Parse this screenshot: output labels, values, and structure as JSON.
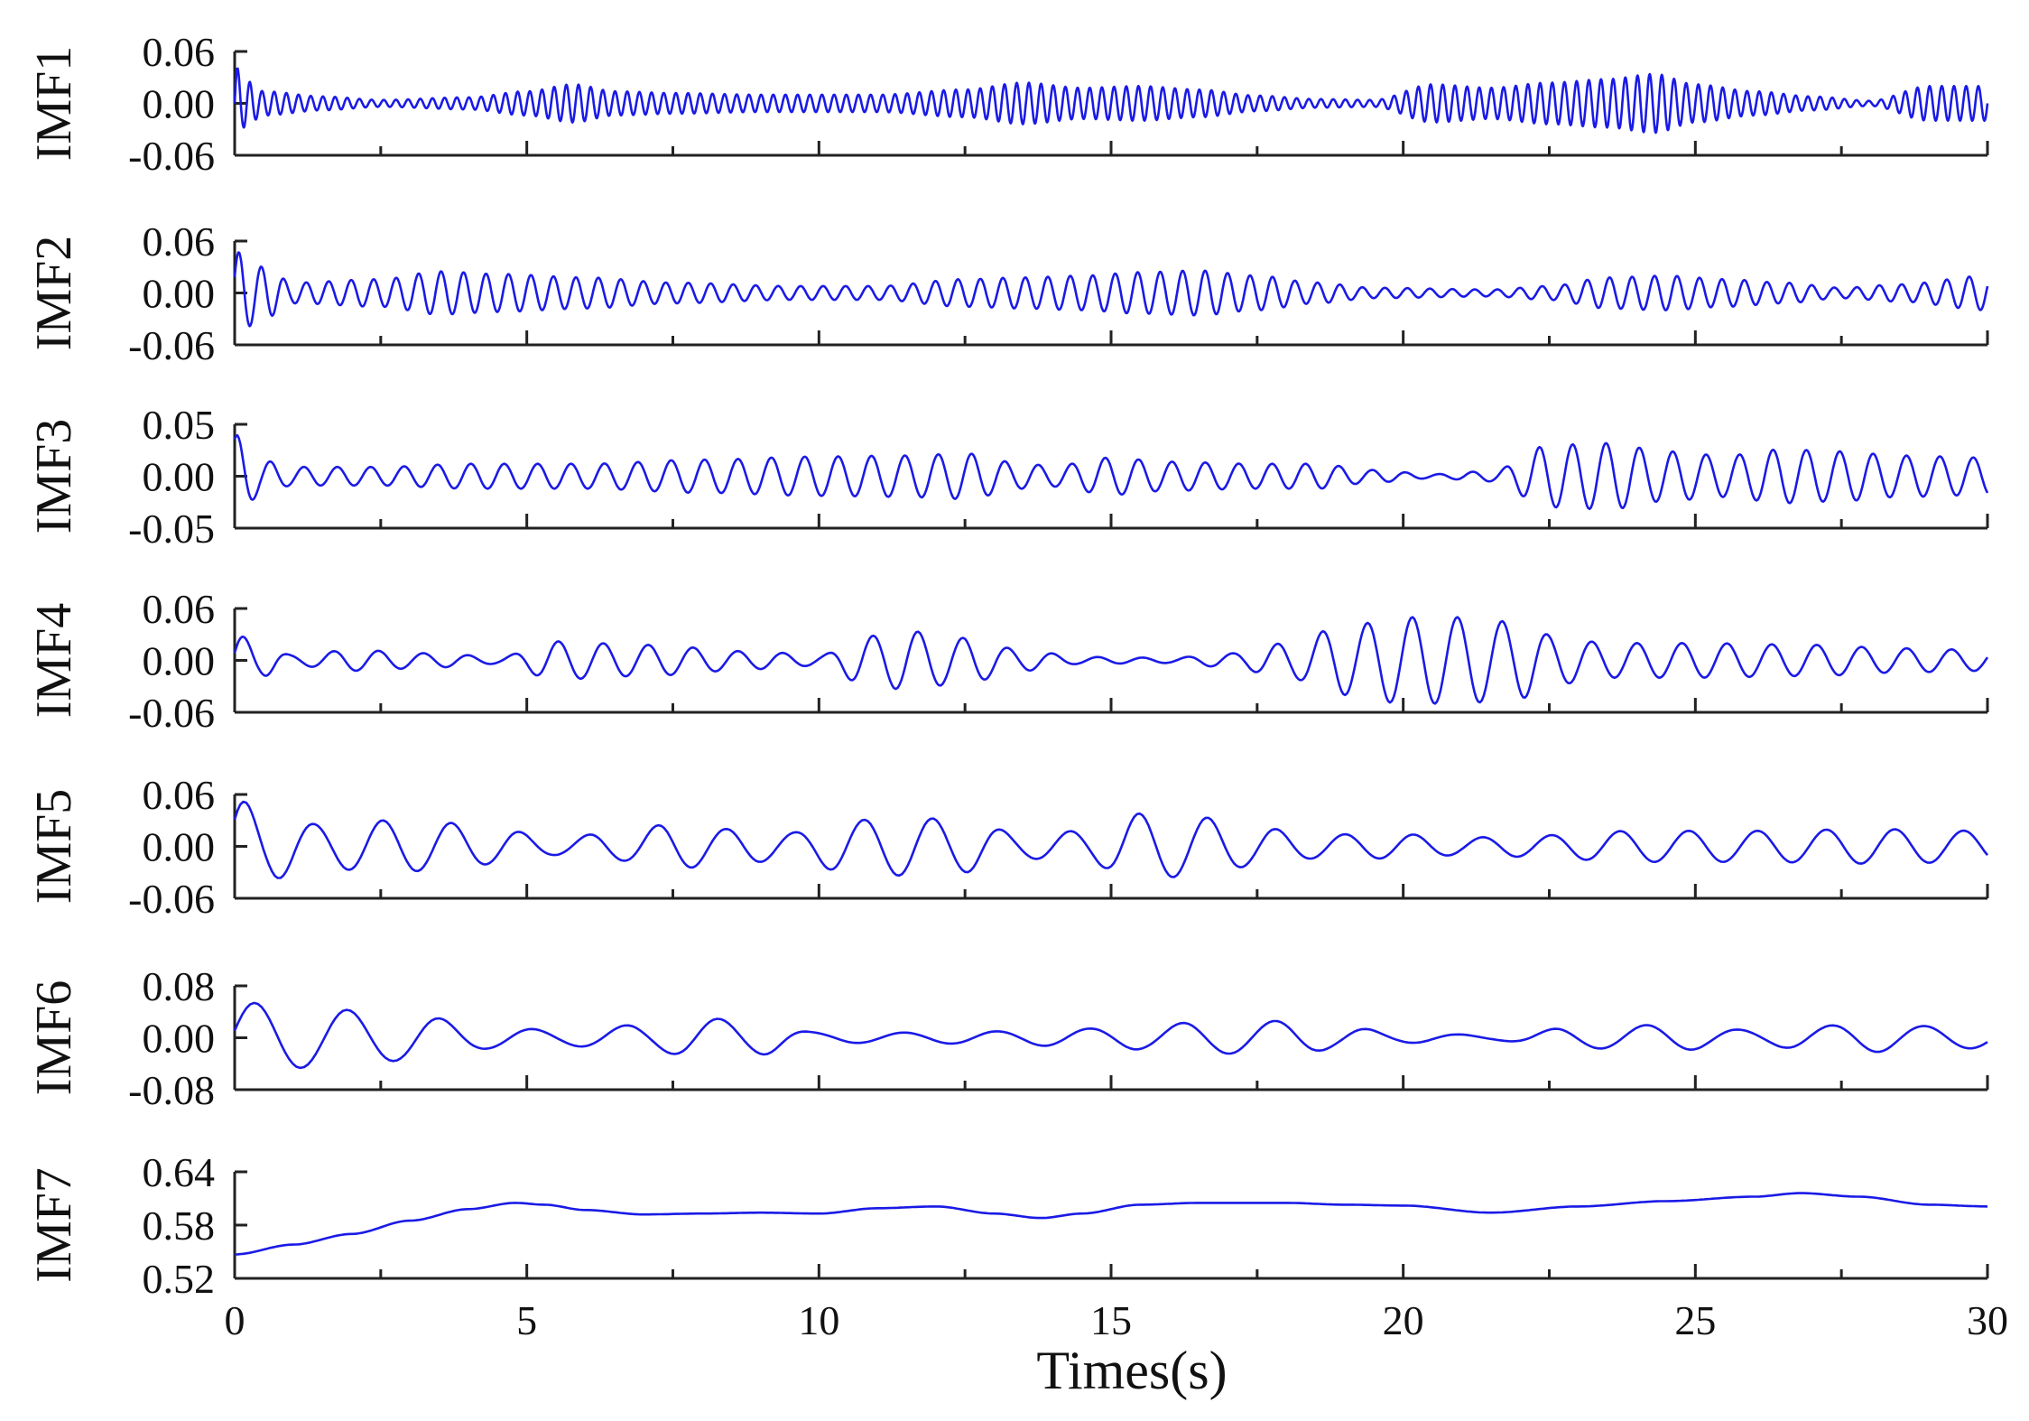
{
  "chart_data": {
    "type": "line",
    "xlabel": "Times(s)",
    "xlim": [
      0,
      30
    ],
    "xticks": [
      0,
      5,
      10,
      15,
      20,
      25,
      30
    ],
    "line_color": "#1a1ae6",
    "panels": [
      {
        "name": "IMF1",
        "ylim": [
          -0.06,
          0.06
        ],
        "yticks": [
          "0.06",
          "0.00",
          "-0.06"
        ],
        "osc": {
          "freq": 4.8,
          "phase": 0.0
        },
        "envelope": [
          [
            0,
            0.045
          ],
          [
            0.15,
            0.028
          ],
          [
            0.5,
            0.014
          ],
          [
            1.5,
            0.008
          ],
          [
            2.5,
            0.004
          ],
          [
            4,
            0.007
          ],
          [
            5,
            0.014
          ],
          [
            5.8,
            0.022
          ],
          [
            6.5,
            0.014
          ],
          [
            7.5,
            0.012
          ],
          [
            9,
            0.01
          ],
          [
            11,
            0.01
          ],
          [
            12.5,
            0.016
          ],
          [
            13.5,
            0.024
          ],
          [
            14.5,
            0.018
          ],
          [
            15.5,
            0.02
          ],
          [
            16.5,
            0.016
          ],
          [
            17.5,
            0.009
          ],
          [
            18.5,
            0.005
          ],
          [
            19.5,
            0.004
          ],
          [
            20.5,
            0.022
          ],
          [
            21.5,
            0.018
          ],
          [
            22.5,
            0.024
          ],
          [
            23.5,
            0.028
          ],
          [
            24.3,
            0.034
          ],
          [
            25,
            0.022
          ],
          [
            26,
            0.014
          ],
          [
            27,
            0.008
          ],
          [
            28,
            0.003
          ],
          [
            29,
            0.02
          ],
          [
            30,
            0.02
          ]
        ]
      },
      {
        "name": "IMF2",
        "ylim": [
          -0.06,
          0.06
        ],
        "yticks": [
          "0.06",
          "0.00",
          "-0.06"
        ],
        "osc": {
          "freq": 2.6,
          "phase": 0.4
        },
        "envelope": [
          [
            0,
            0.048
          ],
          [
            0.5,
            0.03
          ],
          [
            1,
            0.012
          ],
          [
            2.5,
            0.016
          ],
          [
            3.5,
            0.025
          ],
          [
            4.5,
            0.022
          ],
          [
            6,
            0.018
          ],
          [
            7.5,
            0.012
          ],
          [
            9.5,
            0.008
          ],
          [
            11,
            0.008
          ],
          [
            12.5,
            0.016
          ],
          [
            13.5,
            0.018
          ],
          [
            14.5,
            0.02
          ],
          [
            15.5,
            0.024
          ],
          [
            16.5,
            0.026
          ],
          [
            17.5,
            0.02
          ],
          [
            18.5,
            0.012
          ],
          [
            19.5,
            0.006
          ],
          [
            21.5,
            0.004
          ],
          [
            22.5,
            0.008
          ],
          [
            23.5,
            0.018
          ],
          [
            24.5,
            0.02
          ],
          [
            25.5,
            0.016
          ],
          [
            26.5,
            0.012
          ],
          [
            27.5,
            0.006
          ],
          [
            28.5,
            0.01
          ],
          [
            30,
            0.02
          ]
        ]
      },
      {
        "name": "IMF3",
        "ylim": [
          -0.05,
          0.05
        ],
        "yticks": [
          "0.05",
          "0.00",
          "-0.05"
        ],
        "osc": {
          "freq": 1.75,
          "phase": 1.1
        },
        "envelope": [
          [
            0,
            0.04
          ],
          [
            0.5,
            0.015
          ],
          [
            1,
            0.009
          ],
          [
            2.5,
            0.009
          ],
          [
            4,
            0.012
          ],
          [
            6,
            0.012
          ],
          [
            8,
            0.016
          ],
          [
            10,
            0.019
          ],
          [
            11.5,
            0.02
          ],
          [
            12.5,
            0.022
          ],
          [
            13.5,
            0.012
          ],
          [
            14,
            0.01
          ],
          [
            15,
            0.018
          ],
          [
            16,
            0.014
          ],
          [
            17.5,
            0.012
          ],
          [
            18.5,
            0.012
          ],
          [
            19.5,
            0.006
          ],
          [
            20.5,
            0.002
          ],
          [
            21.5,
            0.005
          ],
          [
            22.5,
            0.03
          ],
          [
            23.5,
            0.032
          ],
          [
            24.5,
            0.024
          ],
          [
            25.5,
            0.02
          ],
          [
            26.5,
            0.026
          ],
          [
            27.5,
            0.024
          ],
          [
            28.5,
            0.02
          ],
          [
            30,
            0.018
          ]
        ]
      },
      {
        "name": "IMF4",
        "ylim": [
          -0.06,
          0.06
        ],
        "yticks": [
          "0.06",
          "0.00",
          "-0.06"
        ],
        "osc": {
          "freq": 1.3,
          "phase": 0.3
        },
        "envelope": [
          [
            0,
            0.03
          ],
          [
            0.5,
            0.018
          ],
          [
            1,
            0.006
          ],
          [
            2,
            0.012
          ],
          [
            3.5,
            0.008
          ],
          [
            4.5,
            0.004
          ],
          [
            5.5,
            0.022
          ],
          [
            7,
            0.018
          ],
          [
            9,
            0.01
          ],
          [
            10,
            0.006
          ],
          [
            10.8,
            0.028
          ],
          [
            11.5,
            0.034
          ],
          [
            12.5,
            0.026
          ],
          [
            13.5,
            0.012
          ],
          [
            14.5,
            0.004
          ],
          [
            16,
            0.003
          ],
          [
            17,
            0.008
          ],
          [
            18,
            0.02
          ],
          [
            19,
            0.04
          ],
          [
            20,
            0.05
          ],
          [
            21,
            0.05
          ],
          [
            22,
            0.044
          ],
          [
            22.6,
            0.028
          ],
          [
            23.5,
            0.02
          ],
          [
            25,
            0.02
          ],
          [
            27,
            0.018
          ],
          [
            28.5,
            0.014
          ],
          [
            30,
            0.012
          ]
        ]
      },
      {
        "name": "IMF5",
        "ylim": [
          -0.06,
          0.06
        ],
        "yticks": [
          "0.06",
          "0.00",
          "-0.06"
        ],
        "osc": {
          "freq": 0.85,
          "phase": 0.6
        },
        "envelope": [
          [
            0,
            0.055
          ],
          [
            0.6,
            0.038
          ],
          [
            1.5,
            0.025
          ],
          [
            2.5,
            0.03
          ],
          [
            3.5,
            0.028
          ],
          [
            4.5,
            0.02
          ],
          [
            5.5,
            0.01
          ],
          [
            6.5,
            0.016
          ],
          [
            7.5,
            0.026
          ],
          [
            8.5,
            0.02
          ],
          [
            9.5,
            0.016
          ],
          [
            10.5,
            0.03
          ],
          [
            11.5,
            0.034
          ],
          [
            12.5,
            0.03
          ],
          [
            13.5,
            0.014
          ],
          [
            14.5,
            0.018
          ],
          [
            15.5,
            0.038
          ],
          [
            16.5,
            0.034
          ],
          [
            17.5,
            0.022
          ],
          [
            18.5,
            0.014
          ],
          [
            20,
            0.014
          ],
          [
            21,
            0.01
          ],
          [
            22,
            0.012
          ],
          [
            24,
            0.018
          ],
          [
            26,
            0.018
          ],
          [
            28,
            0.02
          ],
          [
            30,
            0.018
          ]
        ]
      },
      {
        "name": "IMF6",
        "ylim": [
          -0.08,
          0.08
        ],
        "yticks": [
          "0.08",
          "0.00",
          "-0.08"
        ],
        "osc": {
          "freq": 0.63,
          "phase": 0.2
        },
        "envelope": [
          [
            0,
            0.055
          ],
          [
            1.5,
            0.045
          ],
          [
            3,
            0.035
          ],
          [
            4.5,
            0.016
          ],
          [
            5.5,
            0.012
          ],
          [
            7,
            0.02
          ],
          [
            8,
            0.03
          ],
          [
            9,
            0.026
          ],
          [
            10,
            0.008
          ],
          [
            11.5,
            0.008
          ],
          [
            13,
            0.01
          ],
          [
            14.5,
            0.014
          ],
          [
            15.5,
            0.018
          ],
          [
            16.5,
            0.024
          ],
          [
            18,
            0.026
          ],
          [
            19,
            0.016
          ],
          [
            20,
            0.008
          ],
          [
            21.5,
            0.004
          ],
          [
            23,
            0.016
          ],
          [
            24.5,
            0.02
          ],
          [
            26,
            0.012
          ],
          [
            27,
            0.018
          ],
          [
            28,
            0.022
          ],
          [
            29,
            0.018
          ],
          [
            30,
            0.016
          ]
        ]
      },
      {
        "name": "IMF7",
        "ylim": [
          0.52,
          0.64
        ],
        "yticks": [
          "0.64",
          "0.58",
          "0.52"
        ],
        "trend": {
          "x": [
            0,
            1,
            2,
            3,
            4,
            4.8,
            5.3,
            6,
            7,
            8,
            9,
            10,
            11,
            12,
            13,
            13.8,
            14.5,
            15.5,
            16.5,
            18,
            19,
            20,
            21.5,
            23,
            24.5,
            26,
            26.8,
            27.8,
            29,
            30
          ],
          "y": [
            0.547,
            0.558,
            0.57,
            0.585,
            0.598,
            0.605,
            0.603,
            0.597,
            0.592,
            0.593,
            0.594,
            0.593,
            0.599,
            0.601,
            0.593,
            0.588,
            0.593,
            0.603,
            0.605,
            0.605,
            0.603,
            0.602,
            0.594,
            0.601,
            0.607,
            0.612,
            0.616,
            0.612,
            0.603,
            0.601
          ]
        }
      }
    ]
  }
}
